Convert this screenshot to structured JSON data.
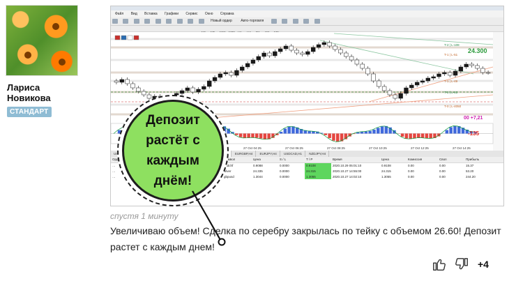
{
  "author": {
    "name": "Лариса Новикова",
    "badge": "СТАНДАРТ"
  },
  "screenshot": {
    "menu": [
      "Файл",
      "Вид",
      "Вставка",
      "Графики",
      "Сервис",
      "Окно",
      "Справка"
    ],
    "toolbar": {
      "new_order": "Новый ордер",
      "autotrade": "Авто-торговля"
    },
    "timeframes": [
      "M1",
      "M5",
      "M15",
      "M30",
      "H1",
      "H4",
      "D1",
      "W1",
      "MN"
    ],
    "chart_labels": {
      "price_box": "24.300",
      "oscillator_value": "-135",
      "profit_label": "00 +7,21",
      "level_1": "T-2 | L-108",
      "level_2": "T-1 | L-51",
      "level_3": "T-1 | L-49",
      "level_4": "T-2 | L-81",
      "level_5": "T-0 | L-4050"
    },
    "time_axis": [
      "26 Oct 22:25",
      "27 Oct 00:25",
      "27 Oct 02:25",
      "27 Oct 04:25",
      "27 Oct 06:25",
      "27 Oct 08:25",
      "27 Oct 10:25",
      "27 Oct 12:25",
      "27 Oct 14:25"
    ],
    "tabs": [
      "USDCHF,M5",
      "GBPUSD,M5",
      "AUDUSD,M5",
      "GOLD,M5",
      "SILVER,M5",
      "EURGBP,H4",
      "EURJPY,H4",
      "USDCAD,H1",
      "NZDJPY,H4"
    ],
    "active_tab": "SILVER,M5",
    "terminal_headers": [
      "Ордер",
      "Время",
      "Тип",
      "Объем",
      "Символ",
      "Цена",
      "S / L",
      "T / P",
      "Время",
      "Цена",
      "Комиссия",
      "Своп",
      "Прибыль"
    ],
    "terminal_rows": [
      [
        "…",
        "",
        "",
        "1.40",
        "usdchf",
        "0.9088",
        "0.0000",
        "0.9108",
        "2020.10.29 05:01:10",
        "0.9108",
        "0.00",
        "0.00",
        "15.37"
      ],
      [
        "…",
        "",
        "",
        "26.60",
        "silver",
        "24.335",
        "0.0000",
        "24.315",
        "2020.10.27 14:55:00",
        "24.315",
        "0.00",
        "0.00",
        "53.20"
      ],
      [
        "…",
        "",
        "",
        "22.20",
        "gbpusd",
        "1.3044",
        "0.0000",
        "1.3055",
        "2020.10.27 14:02:10",
        "1.3055",
        "0.00",
        "0.00",
        "244.20"
      ]
    ]
  },
  "callout": {
    "text": "Депозит растёт с каждым днём!"
  },
  "timestamp": "спустя 1 минуту",
  "comment": "Увеличиваю объем! Сделка по серебру закрылась по тейку с объемом 26.60! Депозит растет с каждым днем!",
  "score": "+4",
  "colors": {
    "callout_fill": "#8ee060",
    "badge": "#8fbcd4",
    "tp_highlight": "#5ed65e",
    "candle_up": "#1a1a1a",
    "osc_blue": "#1f4fd6",
    "osc_red": "#e0261e"
  }
}
